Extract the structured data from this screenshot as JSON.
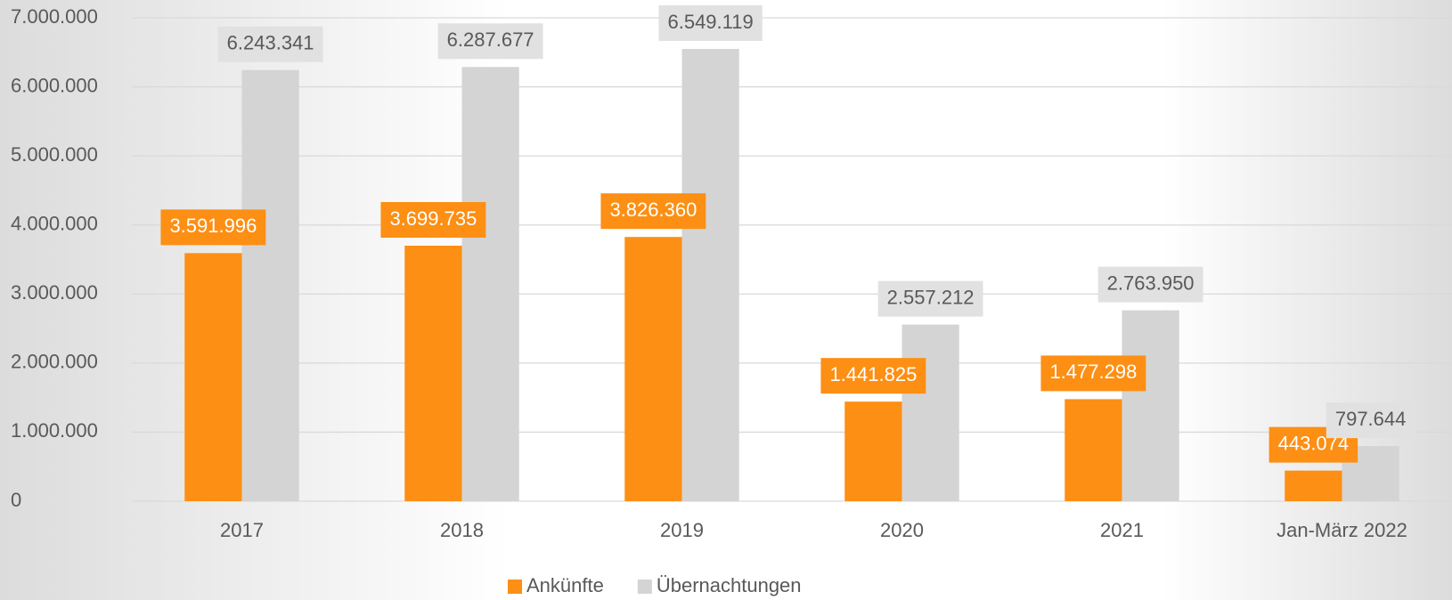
{
  "chart_data": {
    "type": "bar",
    "categories": [
      "2017",
      "2018",
      "2019",
      "2020",
      "2021",
      "Jan-März 2022"
    ],
    "series": [
      {
        "name": "Ankünfte",
        "color": "#fc8f14",
        "values": [
          3591996,
          3699735,
          3826360,
          1441825,
          1477298,
          443074
        ],
        "value_labels": [
          "3.591.996",
          "3.699.735",
          "3.826.360",
          "1.441.825",
          "1.477.298",
          "443.074"
        ]
      },
      {
        "name": "Übernachtungen",
        "color": "#d4d4d4",
        "values": [
          6243341,
          6287677,
          6549119,
          2557212,
          2763950,
          797644
        ],
        "value_labels": [
          "6.243.341",
          "6.287.677",
          "6.549.119",
          "2.557.212",
          "2.763.950",
          "797.644"
        ]
      }
    ],
    "ylim": [
      0,
      7000000
    ],
    "yticks": [
      0,
      {
        "value": 1000000,
        "label": "1.000.000"
      },
      {
        "value": 2000000,
        "label": "2.000.000"
      },
      {
        "value": 3000000,
        "label": "3.000.000"
      },
      {
        "value": 4000000,
        "label": "4.000.000"
      },
      {
        "value": 5000000,
        "label": "5.000.000"
      },
      {
        "value": 6000000,
        "label": "6.000.000"
      },
      {
        "value": 7000000,
        "label": "7.000.000"
      }
    ],
    "grid": true,
    "legend": "bottom"
  }
}
